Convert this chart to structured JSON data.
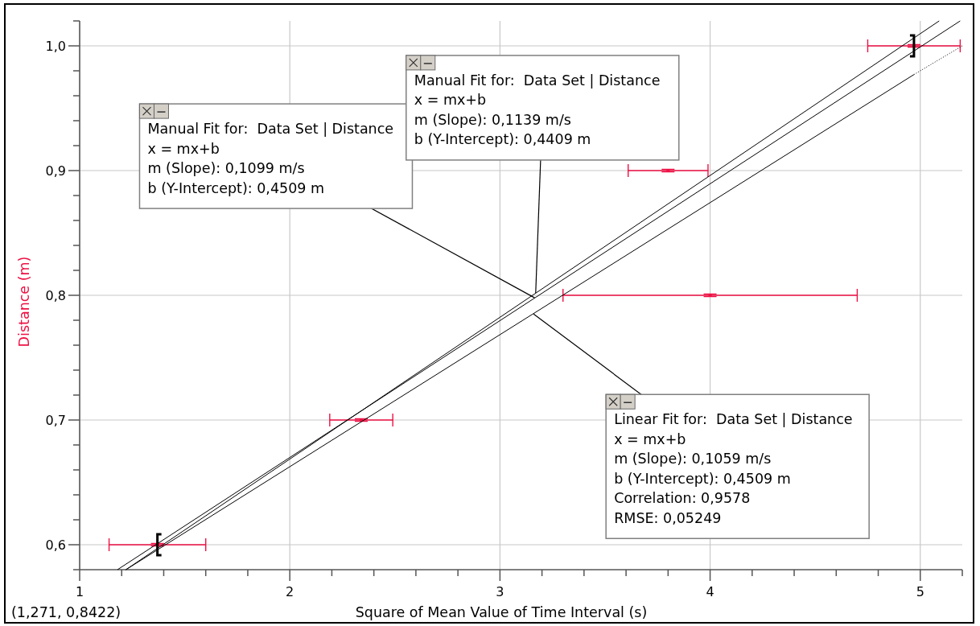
{
  "chart_data": {
    "type": "scatter",
    "xlabel": "Square of Mean Value of Time Interval (s)",
    "ylabel": "Distance (m)",
    "xlim": [
      1,
      5.2
    ],
    "ylim": [
      0.58,
      1.02
    ],
    "xticks": [
      1,
      {
        "value": 1.2,
        "label": null
      },
      {
        "value": 1.4,
        "label": null
      },
      {
        "value": 1.6,
        "label": null
      },
      {
        "value": 1.8,
        "label": null
      },
      2,
      {
        "value": 2.2,
        "label": null
      },
      {
        "value": 2.4,
        "label": null
      },
      {
        "value": 2.6,
        "label": null
      },
      {
        "value": 2.8,
        "label": null
      },
      3,
      {
        "value": 3.2,
        "label": null
      },
      {
        "value": 3.4,
        "label": null
      },
      {
        "value": 3.6,
        "label": null
      },
      {
        "value": 3.8,
        "label": null
      },
      4,
      {
        "value": 4.2,
        "label": null
      },
      {
        "value": 4.4,
        "label": null
      },
      {
        "value": 4.6,
        "label": null
      },
      {
        "value": 4.8,
        "label": null
      },
      5,
      {
        "value": 5.2,
        "label": null
      }
    ],
    "yticks": [
      {
        "value": 0.58,
        "label": null
      },
      {
        "value": 0.6,
        "label": "0,6"
      },
      {
        "value": 0.62,
        "label": null
      },
      {
        "value": 0.64,
        "label": null
      },
      {
        "value": 0.66,
        "label": null
      },
      {
        "value": 0.68,
        "label": null
      },
      {
        "value": 0.7,
        "label": "0,7"
      },
      {
        "value": 0.72,
        "label": null
      },
      {
        "value": 0.74,
        "label": null
      },
      {
        "value": 0.76,
        "label": null
      },
      {
        "value": 0.78,
        "label": null
      },
      {
        "value": 0.8,
        "label": "0,8"
      },
      {
        "value": 0.82,
        "label": null
      },
      {
        "value": 0.84,
        "label": null
      },
      {
        "value": 0.86,
        "label": null
      },
      {
        "value": 0.88,
        "label": null
      },
      {
        "value": 0.9,
        "label": "0,9"
      },
      {
        "value": 0.92,
        "label": null
      },
      {
        "value": 0.94,
        "label": null
      },
      {
        "value": 0.96,
        "label": null
      },
      {
        "value": 0.98,
        "label": null
      },
      {
        "value": 1.0,
        "label": "1,0"
      },
      {
        "value": 1.02,
        "label": null
      }
    ],
    "grid": true,
    "series": [
      {
        "color": "#ee1144",
        "marker": "square",
        "x": [
          1.37,
          2.34,
          3.8,
          4.0,
          4.97
        ],
        "values": [
          0.6,
          0.7,
          0.9,
          0.8,
          1.0
        ],
        "xerrors": [
          0.23,
          0.15,
          0.19,
          0.7,
          0.22
        ],
        "errors": [
          0.001,
          0.001,
          0.001,
          0.001,
          0.001
        ]
      },
      {
        "type": "line",
        "color": "#000000",
        "x": [
          1.18,
          5.19
        ],
        "values": [
          0.58,
          1.02
        ]
      },
      {
        "type": "line",
        "color": "#000000",
        "x": [
          1.22,
          5.09
        ],
        "values": [
          0.58,
          1.02
        ]
      },
      {
        "type": "line",
        "color": "#000000",
        "x": [
          1.22,
          4.97
        ],
        "values": [
          0.58,
          0.977
        ]
      },
      {
        "type": "line",
        "color": "#000000",
        "line_style": "dotted",
        "x": [
          4.97,
          5.2
        ],
        "values": [
          0.977,
          1.0
        ]
      }
    ],
    "annotations": [
      {
        "text": "Manual Fit for:  Data Set | Distance\nx = mx+b\nm (Slope): 0,1099 m/s\nb (Y-Intercept): 0,4509 m",
        "x": 3.165,
        "y": 0.798
      },
      {
        "text": "Manual Fit for:  Data Set | Distance\nx = mx+b\nm (Slope): 0,1139 m/s\nb (Y-Intercept): 0,4409 m",
        "x": 3.17,
        "y": 0.802
      },
      {
        "text": "Linear Fit for:  Data Set | Distance\nx = mx+b\nm (Slope): 0,1059 m/s\nb (Y-Intercept): 0,4509 m\nCorrelation: 0,9578\nRMSE: 0,05249",
        "x": 3.16,
        "y": 0.785
      },
      "(1,271, 0,8422)"
    ]
  }
}
